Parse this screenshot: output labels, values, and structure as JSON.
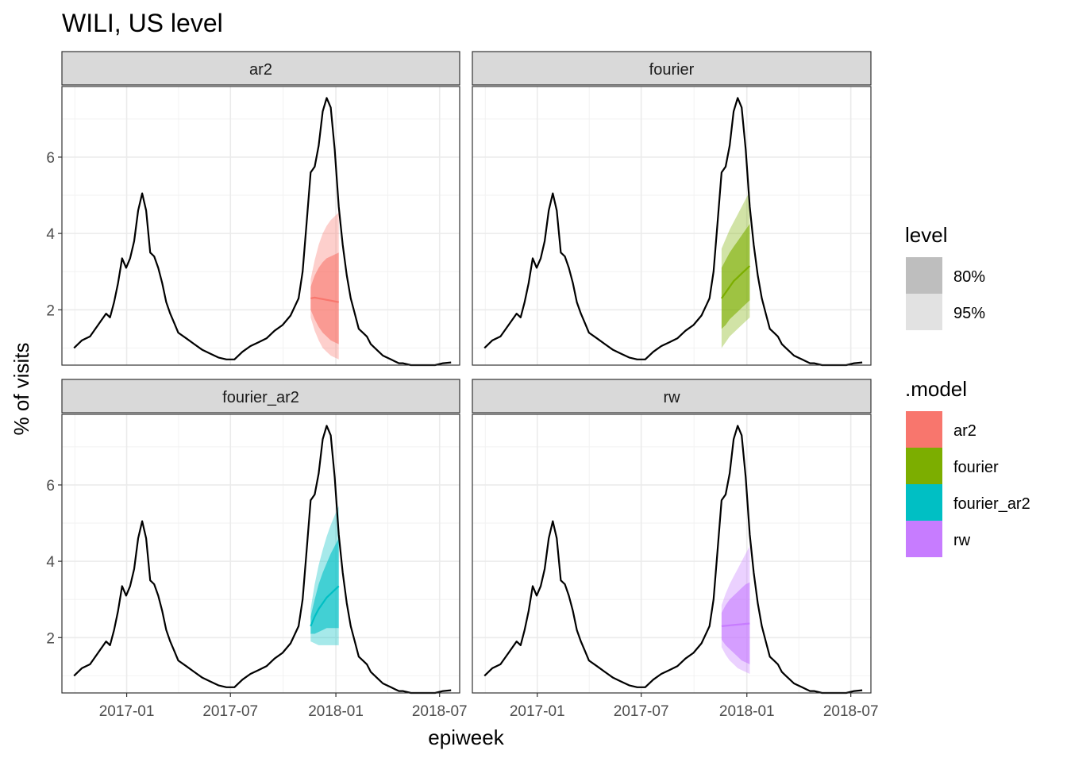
{
  "chart_data": {
    "type": "line",
    "title": "WILI, US level",
    "xlabel": "epiweek",
    "ylabel": "% of visits",
    "x_ticks": [
      "2017-01",
      "2017-07",
      "2018-01",
      "2018-07"
    ],
    "y_ticks": [
      2,
      4,
      6
    ],
    "xlim": [
      "2016-09-10",
      "2018-08-05"
    ],
    "ylim": [
      0.55,
      7.85
    ],
    "grid": true,
    "facet_layout": "2x2",
    "history": {
      "name": "observed",
      "color": "#000000",
      "x": [
        "2016-10-01",
        "2016-10-15",
        "2016-10-29",
        "2016-11-12",
        "2016-11-26",
        "2016-12-03",
        "2016-12-10",
        "2016-12-17",
        "2016-12-24",
        "2016-12-31",
        "2017-01-07",
        "2017-01-14",
        "2017-01-21",
        "2017-01-28",
        "2017-02-04",
        "2017-02-11",
        "2017-02-18",
        "2017-02-25",
        "2017-03-04",
        "2017-03-11",
        "2017-03-18",
        "2017-03-25",
        "2017-04-01",
        "2017-04-15",
        "2017-04-29",
        "2017-05-13",
        "2017-05-27",
        "2017-06-10",
        "2017-06-24",
        "2017-07-08",
        "2017-07-22",
        "2017-08-05",
        "2017-08-19",
        "2017-09-02",
        "2017-09-16",
        "2017-09-30",
        "2017-10-14",
        "2017-10-28",
        "2017-11-04",
        "2017-11-11",
        "2017-11-18",
        "2017-11-25",
        "2017-12-02",
        "2017-12-09",
        "2017-12-16",
        "2017-12-23",
        "2017-12-30",
        "2018-01-06",
        "2018-01-13",
        "2018-01-20",
        "2018-01-27",
        "2018-02-03",
        "2018-02-10",
        "2018-02-17",
        "2018-02-24",
        "2018-03-03",
        "2018-03-10",
        "2018-03-17",
        "2018-03-24",
        "2018-03-31",
        "2018-04-07",
        "2018-04-14",
        "2018-04-21",
        "2018-04-28",
        "2018-05-12",
        "2018-05-26",
        "2018-06-09",
        "2018-06-23",
        "2018-07-07",
        "2018-07-21"
      ],
      "y": [
        1.0,
        1.2,
        1.3,
        1.6,
        1.9,
        1.8,
        2.2,
        2.7,
        3.35,
        3.1,
        3.35,
        3.8,
        4.6,
        5.05,
        4.6,
        3.5,
        3.4,
        3.1,
        2.7,
        2.2,
        1.9,
        1.65,
        1.4,
        1.25,
        1.1,
        0.95,
        0.85,
        0.75,
        0.7,
        0.7,
        0.9,
        1.05,
        1.15,
        1.25,
        1.45,
        1.6,
        1.85,
        2.3,
        3.0,
        4.3,
        5.6,
        5.75,
        6.3,
        7.2,
        7.55,
        7.3,
        6.2,
        4.7,
        3.7,
        2.9,
        2.3,
        1.9,
        1.5,
        1.4,
        1.3,
        1.1,
        1.0,
        0.9,
        0.8,
        0.75,
        0.7,
        0.65,
        0.6,
        0.6,
        0.55,
        0.55,
        0.55,
        0.55,
        0.6,
        0.62
      ]
    },
    "forecast_x": [
      "2017-11-18",
      "2017-11-25",
      "2017-12-02",
      "2017-12-09",
      "2017-12-16",
      "2017-12-23",
      "2017-12-30",
      "2018-01-06"
    ],
    "levels": [
      "80%",
      "95%"
    ],
    "models": [
      {
        "name": "ar2",
        "color": "#F8766D",
        "mean": [
          2.3,
          2.32,
          2.3,
          2.28,
          2.26,
          2.24,
          2.22,
          2.2
        ],
        "lo80": [
          2.0,
          1.75,
          1.55,
          1.4,
          1.3,
          1.2,
          1.15,
          1.1
        ],
        "hi80": [
          2.6,
          2.9,
          3.1,
          3.25,
          3.35,
          3.4,
          3.45,
          3.5
        ],
        "lo95": [
          1.8,
          1.45,
          1.2,
          1.0,
          0.9,
          0.8,
          0.75,
          0.7
        ],
        "hi95": [
          2.8,
          3.3,
          3.7,
          4.0,
          4.2,
          4.35,
          4.45,
          4.55
        ]
      },
      {
        "name": "fourier",
        "color": "#7CAE00",
        "mean": [
          2.3,
          2.45,
          2.6,
          2.75,
          2.85,
          2.95,
          3.05,
          3.15
        ],
        "lo80": [
          1.5,
          1.6,
          1.75,
          1.85,
          1.95,
          2.05,
          2.15,
          2.25
        ],
        "hi80": [
          3.1,
          3.3,
          3.5,
          3.65,
          3.8,
          3.95,
          4.1,
          4.25
        ],
        "lo95": [
          1.0,
          1.15,
          1.3,
          1.4,
          1.5,
          1.6,
          1.7,
          1.8
        ],
        "hi95": [
          3.6,
          3.85,
          4.1,
          4.3,
          4.5,
          4.7,
          4.9,
          5.1
        ]
      },
      {
        "name": "fourier_ar2",
        "color": "#00BFC4",
        "mean": [
          2.3,
          2.55,
          2.75,
          2.9,
          3.05,
          3.15,
          3.25,
          3.35
        ],
        "lo80": [
          2.1,
          2.1,
          2.15,
          2.2,
          2.25,
          2.25,
          2.25,
          2.25
        ],
        "hi80": [
          2.55,
          3.0,
          3.4,
          3.7,
          3.95,
          4.2,
          4.4,
          4.6
        ],
        "lo95": [
          1.9,
          1.85,
          1.8,
          1.8,
          1.8,
          1.8,
          1.8,
          1.8
        ],
        "hi95": [
          2.75,
          3.4,
          3.9,
          4.3,
          4.65,
          4.95,
          5.2,
          5.45
        ]
      },
      {
        "name": "rw",
        "color": "#C77CFF",
        "mean": [
          2.3,
          2.31,
          2.32,
          2.33,
          2.34,
          2.35,
          2.36,
          2.37
        ],
        "lo80": [
          1.95,
          1.8,
          1.7,
          1.6,
          1.5,
          1.4,
          1.35,
          1.3
        ],
        "hi80": [
          2.65,
          2.85,
          3.0,
          3.1,
          3.2,
          3.3,
          3.4,
          3.45
        ],
        "lo95": [
          1.75,
          1.55,
          1.4,
          1.3,
          1.2,
          1.15,
          1.1,
          1.05
        ],
        "hi95": [
          2.85,
          3.15,
          3.4,
          3.6,
          3.8,
          4.0,
          4.2,
          4.4
        ]
      }
    ]
  },
  "legend": {
    "level_title": "level",
    "level_items": [
      {
        "label": "80%",
        "color": "#BEBEBE"
      },
      {
        "label": "95%",
        "color": "#E2E2E2"
      }
    ],
    "model_title": ".model",
    "model_items": [
      {
        "label": "ar2",
        "color": "#F8766D"
      },
      {
        "label": "fourier",
        "color": "#7CAE00"
      },
      {
        "label": "fourier_ar2",
        "color": "#00BFC4"
      },
      {
        "label": "rw",
        "color": "#C77CFF"
      }
    ]
  }
}
